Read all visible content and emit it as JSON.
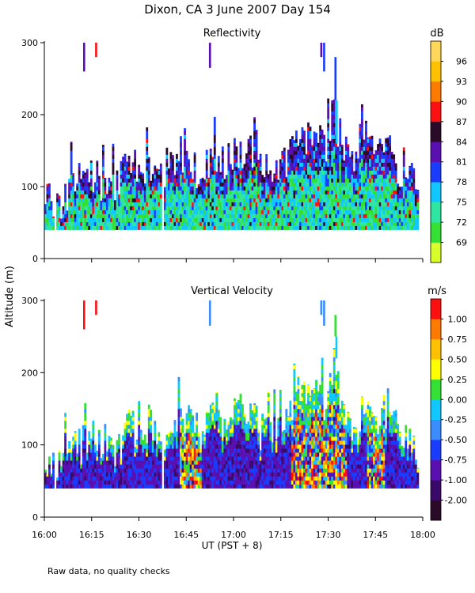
{
  "title": "Dixon, CA   3 June 2007   Day 154",
  "ylabel": "Altitude (m)",
  "footnote": "Raw data, no quality checks",
  "chart_data": [
    {
      "type": "heatmap",
      "title": "Reflectivity",
      "units": "dB",
      "xlabel": "UT  (PST + 8)",
      "ylabel": "Altitude (m)",
      "xlim": [
        "16:00",
        "18:00"
      ],
      "ylim": [
        0,
        300
      ],
      "x_ticks": [
        "16:00",
        "16:15",
        "16:30",
        "16:45",
        "17:00",
        "17:15",
        "17:30",
        "17:45",
        "18:00"
      ],
      "y_ticks": [
        "0",
        "100",
        "200",
        "300"
      ],
      "colorbar": {
        "labels": [
          "69",
          "72",
          "75",
          "78",
          "81",
          "84",
          "87",
          "90",
          "93",
          "96"
        ],
        "colors": [
          "#d8ff2a",
          "#33e033",
          "#2fe6a0",
          "#10c8ff",
          "#1a3cff",
          "#5a10b0",
          "#2a0a28",
          "#ff1010",
          "#ff7a00",
          "#ffc000",
          "#ffd85a"
        ]
      },
      "floor_m": 40,
      "activity": [
        {
          "t": 2,
          "top": 90
        },
        {
          "t": 5,
          "top": 70
        },
        {
          "t": 8,
          "top": 95
        },
        {
          "t": 12,
          "top": 110
        },
        {
          "t": 16,
          "top": 115
        },
        {
          "t": 20,
          "top": 100
        },
        {
          "t": 24,
          "top": 110
        },
        {
          "t": 26,
          "top": 135
        },
        {
          "t": 30,
          "top": 120
        },
        {
          "t": 33,
          "top": 135
        },
        {
          "t": 36,
          "top": 110
        },
        {
          "t": 40,
          "top": 120
        },
        {
          "t": 43,
          "top": 150
        },
        {
          "t": 46,
          "top": 120
        },
        {
          "t": 50,
          "top": 125
        },
        {
          "t": 53,
          "top": 140
        },
        {
          "t": 56,
          "top": 130
        },
        {
          "t": 59,
          "top": 145
        },
        {
          "t": 62,
          "top": 150
        },
        {
          "t": 65,
          "top": 150
        },
        {
          "t": 68,
          "top": 130
        },
        {
          "t": 71,
          "top": 125
        },
        {
          "t": 74,
          "top": 120
        },
        {
          "t": 77,
          "top": 140
        },
        {
          "t": 80,
          "top": 160
        },
        {
          "t": 83,
          "top": 170
        },
        {
          "t": 86,
          "top": 175
        },
        {
          "t": 89,
          "top": 150
        },
        {
          "t": 92,
          "top": 200
        },
        {
          "t": 95,
          "top": 150
        },
        {
          "t": 98,
          "top": 120
        },
        {
          "t": 101,
          "top": 150
        },
        {
          "t": 104,
          "top": 150
        },
        {
          "t": 107,
          "top": 140
        },
        {
          "t": 110,
          "top": 150
        },
        {
          "t": 113,
          "top": 120
        },
        {
          "t": 116,
          "top": 100
        },
        {
          "t": 119,
          "top": 100
        }
      ],
      "artifacts": [
        {
          "t": 12.6,
          "alt_from": 260,
          "alt_to": 300,
          "level": 5
        },
        {
          "t": 16.4,
          "alt_from": 280,
          "alt_to": 300,
          "level": 7
        },
        {
          "t": 52.5,
          "alt_from": 265,
          "alt_to": 300,
          "level": 5
        },
        {
          "t": 87.8,
          "alt_from": 280,
          "alt_to": 300,
          "level": 5
        },
        {
          "t": 88.7,
          "alt_from": 260,
          "alt_to": 300,
          "level": 4
        },
        {
          "t": 92.3,
          "alt_from": 220,
          "alt_to": 280,
          "level": 4
        },
        {
          "t": 92.7,
          "alt_from": 160,
          "alt_to": 220,
          "level": 3
        }
      ]
    },
    {
      "type": "heatmap",
      "title": "Vertical Velocity",
      "units": "m/s",
      "xlabel": "UT  (PST + 8)",
      "ylabel": "Altitude (m)",
      "xlim": [
        "16:00",
        "18:00"
      ],
      "ylim": [
        0,
        300
      ],
      "x_ticks": [
        "16:00",
        "16:15",
        "16:30",
        "16:45",
        "17:00",
        "17:15",
        "17:30",
        "17:45",
        "18:00"
      ],
      "y_ticks": [
        "0",
        "100",
        "200",
        "300"
      ],
      "colorbar": {
        "labels": [
          "-2.00",
          "-1.00",
          "-0.75",
          "-0.50",
          "-0.25",
          "0.00",
          "0.25",
          "0.50",
          "0.75",
          "1.00"
        ],
        "colors": [
          "#2a0a28",
          "#3a0a6a",
          "#5a10b0",
          "#1a3cff",
          "#3a8cff",
          "#10c8ff",
          "#33e033",
          "#ffff00",
          "#ffc000",
          "#ff7a00",
          "#ff1010"
        ]
      },
      "floor_m": 40,
      "activity": [
        {
          "t": 2,
          "top": 80
        },
        {
          "t": 5,
          "top": 65
        },
        {
          "t": 8,
          "top": 90
        },
        {
          "t": 12,
          "top": 100
        },
        {
          "t": 16,
          "top": 110
        },
        {
          "t": 20,
          "top": 95
        },
        {
          "t": 24,
          "top": 100
        },
        {
          "t": 26,
          "top": 135
        },
        {
          "t": 30,
          "top": 115
        },
        {
          "t": 33,
          "top": 130
        },
        {
          "t": 36,
          "top": 100
        },
        {
          "t": 40,
          "top": 110
        },
        {
          "t": 43,
          "top": 150
        },
        {
          "t": 46,
          "top": 130
        },
        {
          "t": 50,
          "top": 120
        },
        {
          "t": 53,
          "top": 140
        },
        {
          "t": 56,
          "top": 130
        },
        {
          "t": 59,
          "top": 140
        },
        {
          "t": 62,
          "top": 150
        },
        {
          "t": 65,
          "top": 150
        },
        {
          "t": 68,
          "top": 120
        },
        {
          "t": 71,
          "top": 110
        },
        {
          "t": 74,
          "top": 110
        },
        {
          "t": 77,
          "top": 140
        },
        {
          "t": 80,
          "top": 160
        },
        {
          "t": 83,
          "top": 170
        },
        {
          "t": 86,
          "top": 170
        },
        {
          "t": 89,
          "top": 160
        },
        {
          "t": 92,
          "top": 210
        },
        {
          "t": 95,
          "top": 150
        },
        {
          "t": 98,
          "top": 120
        },
        {
          "t": 101,
          "top": 150
        },
        {
          "t": 104,
          "top": 140
        },
        {
          "t": 107,
          "top": 140
        },
        {
          "t": 110,
          "top": 160
        },
        {
          "t": 113,
          "top": 120
        },
        {
          "t": 116,
          "top": 100
        },
        {
          "t": 119,
          "top": 90
        }
      ],
      "artifacts": [
        {
          "t": 12.6,
          "alt_from": 260,
          "alt_to": 300,
          "level": 10
        },
        {
          "t": 16.4,
          "alt_from": 280,
          "alt_to": 300,
          "level": 10
        },
        {
          "t": 52.5,
          "alt_from": 265,
          "alt_to": 300,
          "level": 4
        },
        {
          "t": 87.8,
          "alt_from": 280,
          "alt_to": 300,
          "level": 4
        },
        {
          "t": 88.7,
          "alt_from": 265,
          "alt_to": 300,
          "level": 4
        },
        {
          "t": 92.3,
          "alt_from": 250,
          "alt_to": 280,
          "level": 6
        },
        {
          "t": 92.6,
          "alt_from": 220,
          "alt_to": 250,
          "level": 5
        }
      ]
    }
  ]
}
